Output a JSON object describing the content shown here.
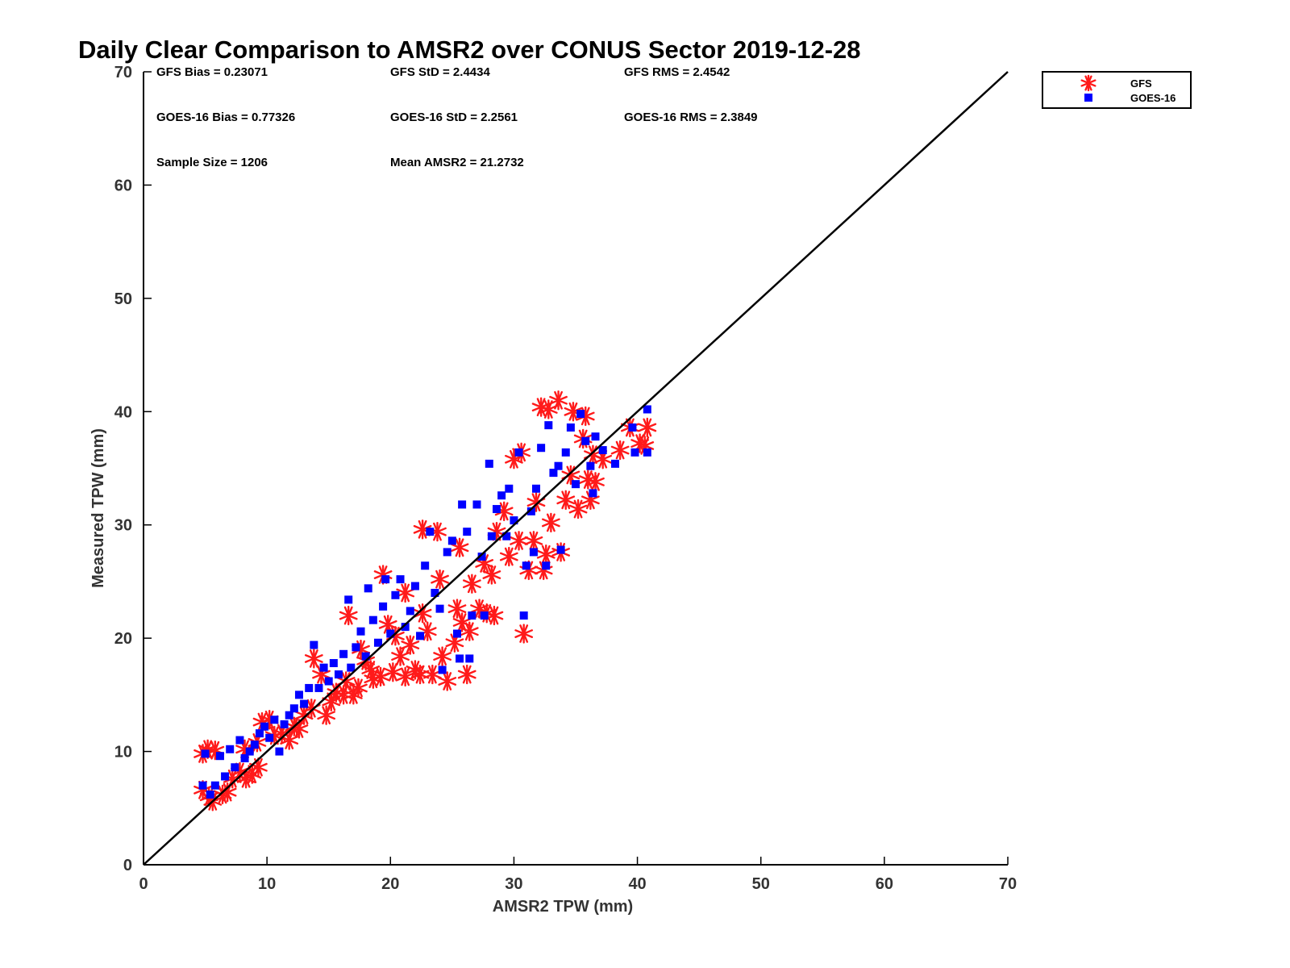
{
  "chart_data": {
    "type": "scatter",
    "title": "Daily Clear Comparison to AMSR2 over CONUS Sector 2019-12-28",
    "xlabel": "AMSR2 TPW (mm)",
    "ylabel": "Measured TPW (mm)",
    "xlim": [
      0,
      70
    ],
    "ylim": [
      0,
      70
    ],
    "xticks": [
      "0",
      "10",
      "20",
      "30",
      "40",
      "50",
      "60",
      "70"
    ],
    "yticks": [
      "0",
      "10",
      "20",
      "30",
      "40",
      "50",
      "60",
      "70"
    ],
    "grid": false,
    "legend_position": "outside top-right",
    "reference_line": {
      "x": [
        0,
        70
      ],
      "y": [
        0,
        70
      ],
      "color": "#000000"
    },
    "stats": [
      "GFS Bias = 0.23071",
      "GFS StD = 2.4434",
      "GFS RMS = 2.4542",
      "GOES-16 Bias = 0.77326",
      "GOES-16 StD = 2.2561",
      "GOES-16 RMS = 2.3849",
      "Sample Size = 1206",
      "Mean AMSR2 = 21.2732"
    ],
    "series": [
      {
        "name": "GFS",
        "marker": "asterisk",
        "color": "#ff1a1a",
        "points": [
          [
            4.8,
            9.8
          ],
          [
            5.2,
            10.2
          ],
          [
            5.8,
            10.1
          ],
          [
            4.8,
            6.6
          ],
          [
            5.3,
            6.0
          ],
          [
            5.6,
            5.6
          ],
          [
            6.4,
            6.2
          ],
          [
            6.8,
            6.4
          ],
          [
            7.2,
            7.6
          ],
          [
            7.8,
            8.2
          ],
          [
            8.3,
            7.6
          ],
          [
            8.8,
            8.0
          ],
          [
            9.3,
            8.6
          ],
          [
            8.2,
            10.2
          ],
          [
            9.2,
            10.8
          ],
          [
            9.6,
            12.6
          ],
          [
            10.2,
            12.8
          ],
          [
            10.6,
            11.4
          ],
          [
            11.2,
            11.6
          ],
          [
            11.8,
            11.0
          ],
          [
            12.2,
            12.2
          ],
          [
            12.6,
            12.0
          ],
          [
            13.0,
            13.2
          ],
          [
            13.6,
            13.8
          ],
          [
            13.8,
            18.2
          ],
          [
            14.4,
            16.8
          ],
          [
            14.8,
            13.2
          ],
          [
            15.2,
            14.4
          ],
          [
            15.6,
            15.2
          ],
          [
            16.2,
            15.0
          ],
          [
            16.4,
            16.2
          ],
          [
            17.0,
            15.0
          ],
          [
            17.4,
            15.6
          ],
          [
            16.6,
            22.0
          ],
          [
            17.6,
            19.0
          ],
          [
            18.0,
            18.0
          ],
          [
            18.4,
            17.2
          ],
          [
            18.6,
            16.4
          ],
          [
            19.2,
            16.6
          ],
          [
            19.4,
            25.6
          ],
          [
            19.8,
            21.2
          ],
          [
            20.2,
            17.0
          ],
          [
            20.4,
            20.2
          ],
          [
            20.8,
            18.4
          ],
          [
            21.2,
            16.6
          ],
          [
            21.2,
            24.0
          ],
          [
            21.6,
            19.4
          ],
          [
            22.0,
            17.2
          ],
          [
            22.4,
            16.8
          ],
          [
            22.6,
            29.6
          ],
          [
            22.6,
            22.2
          ],
          [
            23.0,
            20.6
          ],
          [
            23.4,
            16.8
          ],
          [
            23.8,
            29.4
          ],
          [
            24.0,
            25.2
          ],
          [
            24.2,
            18.4
          ],
          [
            24.6,
            16.2
          ],
          [
            25.2,
            19.6
          ],
          [
            25.4,
            22.6
          ],
          [
            25.6,
            28.0
          ],
          [
            25.8,
            21.4
          ],
          [
            26.2,
            16.8
          ],
          [
            26.4,
            20.6
          ],
          [
            26.6,
            24.8
          ],
          [
            27.2,
            22.6
          ],
          [
            27.6,
            26.6
          ],
          [
            27.8,
            22.2
          ],
          [
            28.2,
            25.6
          ],
          [
            28.4,
            22.0
          ],
          [
            28.6,
            29.4
          ],
          [
            29.2,
            31.2
          ],
          [
            29.6,
            27.2
          ],
          [
            30.0,
            35.8
          ],
          [
            30.4,
            28.6
          ],
          [
            30.6,
            36.4
          ],
          [
            30.8,
            20.4
          ],
          [
            31.2,
            26.0
          ],
          [
            31.6,
            28.6
          ],
          [
            31.8,
            32.0
          ],
          [
            32.2,
            40.4
          ],
          [
            32.4,
            26.0
          ],
          [
            32.6,
            27.4
          ],
          [
            32.8,
            40.2
          ],
          [
            33.0,
            30.2
          ],
          [
            33.6,
            41.0
          ],
          [
            33.8,
            27.6
          ],
          [
            34.2,
            32.2
          ],
          [
            34.6,
            34.4
          ],
          [
            34.8,
            40.0
          ],
          [
            35.2,
            31.4
          ],
          [
            35.6,
            37.6
          ],
          [
            35.8,
            39.6
          ],
          [
            36.0,
            34.0
          ],
          [
            36.2,
            32.2
          ],
          [
            36.4,
            36.2
          ],
          [
            36.6,
            33.8
          ],
          [
            37.2,
            35.8
          ],
          [
            38.6,
            36.6
          ],
          [
            39.4,
            38.6
          ],
          [
            40.2,
            37.2
          ],
          [
            40.8,
            38.6
          ],
          [
            40.6,
            37.0
          ]
        ]
      },
      {
        "name": "GOES-16",
        "marker": "square",
        "color": "#0000ff",
        "points": [
          [
            4.8,
            7.0
          ],
          [
            5.0,
            9.8
          ],
          [
            5.4,
            6.2
          ],
          [
            5.8,
            7.0
          ],
          [
            6.2,
            9.6
          ],
          [
            6.6,
            7.8
          ],
          [
            7.0,
            10.2
          ],
          [
            7.4,
            8.6
          ],
          [
            7.8,
            11.0
          ],
          [
            8.2,
            9.4
          ],
          [
            8.6,
            10.0
          ],
          [
            9.0,
            10.6
          ],
          [
            9.4,
            11.6
          ],
          [
            9.8,
            12.2
          ],
          [
            10.2,
            11.2
          ],
          [
            10.6,
            12.8
          ],
          [
            11.0,
            10.0
          ],
          [
            11.4,
            12.4
          ],
          [
            11.8,
            13.2
          ],
          [
            12.2,
            13.8
          ],
          [
            12.6,
            15.0
          ],
          [
            13.0,
            14.2
          ],
          [
            13.4,
            15.6
          ],
          [
            13.8,
            19.4
          ],
          [
            14.2,
            15.6
          ],
          [
            14.6,
            17.4
          ],
          [
            15.0,
            16.2
          ],
          [
            15.4,
            17.8
          ],
          [
            15.8,
            16.8
          ],
          [
            16.2,
            18.6
          ],
          [
            16.6,
            23.4
          ],
          [
            16.8,
            17.4
          ],
          [
            17.2,
            19.2
          ],
          [
            17.6,
            20.6
          ],
          [
            18.0,
            18.4
          ],
          [
            18.2,
            24.4
          ],
          [
            18.6,
            21.6
          ],
          [
            19.0,
            19.6
          ],
          [
            19.4,
            22.8
          ],
          [
            19.6,
            25.2
          ],
          [
            20.0,
            20.4
          ],
          [
            20.4,
            23.8
          ],
          [
            20.8,
            25.2
          ],
          [
            21.2,
            21.0
          ],
          [
            21.6,
            22.4
          ],
          [
            22.0,
            24.6
          ],
          [
            22.4,
            20.2
          ],
          [
            22.8,
            26.4
          ],
          [
            23.2,
            29.4
          ],
          [
            23.6,
            24.0
          ],
          [
            24.0,
            22.6
          ],
          [
            24.2,
            17.2
          ],
          [
            24.6,
            27.6
          ],
          [
            25.0,
            28.6
          ],
          [
            25.4,
            20.4
          ],
          [
            25.6,
            18.2
          ],
          [
            25.8,
            31.8
          ],
          [
            26.2,
            29.4
          ],
          [
            26.4,
            18.2
          ],
          [
            26.6,
            22.0
          ],
          [
            27.0,
            31.8
          ],
          [
            27.4,
            27.2
          ],
          [
            27.6,
            22.0
          ],
          [
            28.0,
            35.4
          ],
          [
            28.2,
            29.0
          ],
          [
            28.6,
            31.4
          ],
          [
            29.0,
            32.6
          ],
          [
            29.4,
            29.0
          ],
          [
            29.6,
            33.2
          ],
          [
            30.0,
            30.4
          ],
          [
            30.4,
            36.4
          ],
          [
            30.8,
            22.0
          ],
          [
            31.0,
            26.4
          ],
          [
            31.4,
            31.2
          ],
          [
            31.6,
            27.6
          ],
          [
            31.8,
            33.2
          ],
          [
            32.2,
            36.8
          ],
          [
            32.6,
            26.4
          ],
          [
            32.8,
            38.8
          ],
          [
            33.2,
            34.6
          ],
          [
            33.6,
            35.2
          ],
          [
            33.8,
            27.8
          ],
          [
            34.2,
            36.4
          ],
          [
            34.6,
            38.6
          ],
          [
            35.0,
            33.6
          ],
          [
            35.4,
            39.8
          ],
          [
            35.8,
            37.4
          ],
          [
            36.2,
            35.2
          ],
          [
            36.6,
            37.8
          ],
          [
            36.4,
            32.8
          ],
          [
            37.2,
            36.6
          ],
          [
            38.2,
            35.4
          ],
          [
            39.6,
            38.6
          ],
          [
            39.8,
            36.4
          ],
          [
            40.8,
            40.2
          ],
          [
            40.8,
            36.4
          ]
        ]
      }
    ]
  }
}
